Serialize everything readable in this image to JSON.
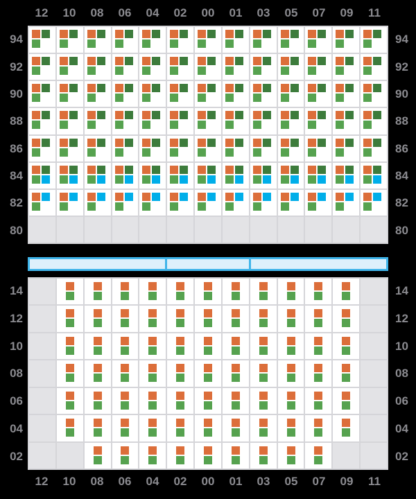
{
  "colors": {
    "background": "#000000",
    "label_text": "#8b8b90",
    "cell_bg": "#ffffff",
    "cell_empty_bg": "#e3e3e6",
    "grid_line": "#d5d5d9",
    "orange": "#dc6e3a",
    "dark_green": "#3d7c3c",
    "green": "#56a24f",
    "blue": "#00aee9",
    "selector_fill": "#ddf0fb",
    "selector_border": "#3fb4e9"
  },
  "chart_data": {
    "type": "heatmap",
    "title": "",
    "legend": "none",
    "x_labels": [
      "12",
      "10",
      "08",
      "06",
      "04",
      "02",
      "00",
      "01",
      "03",
      "05",
      "07",
      "09",
      "11"
    ],
    "x_axis_shown": "top and bottom",
    "y_axis_shown": "left and right",
    "cell_patterns": {
      "A": {
        "layout": "quad",
        "squares": [
          {
            "pos": "tl",
            "color": "orange"
          },
          {
            "pos": "tr",
            "color": "dark_green"
          },
          {
            "pos": "bl",
            "color": "green"
          }
        ]
      },
      "B": {
        "layout": "quad",
        "squares": [
          {
            "pos": "tl",
            "color": "orange"
          },
          {
            "pos": "tr",
            "color": "dark_green"
          },
          {
            "pos": "bl",
            "color": "green"
          },
          {
            "pos": "br",
            "color": "blue"
          }
        ]
      },
      "C": {
        "layout": "quad",
        "squares": [
          {
            "pos": "tl",
            "color": "orange"
          },
          {
            "pos": "tr",
            "color": "blue"
          },
          {
            "pos": "bl",
            "color": "green"
          }
        ]
      },
      "S": {
        "layout": "stack",
        "squares": [
          {
            "pos": "t",
            "color": "orange"
          },
          {
            "pos": "b",
            "color": "green"
          }
        ]
      },
      "E": {
        "layout": "empty",
        "squares": []
      }
    },
    "panels": [
      {
        "id": "top",
        "rows": [
          {
            "y": "94",
            "cells": [
              "A",
              "A",
              "A",
              "A",
              "A",
              "A",
              "A",
              "A",
              "A",
              "A",
              "A",
              "A",
              "A"
            ]
          },
          {
            "y": "92",
            "cells": [
              "A",
              "A",
              "A",
              "A",
              "A",
              "A",
              "A",
              "A",
              "A",
              "A",
              "A",
              "A",
              "A"
            ]
          },
          {
            "y": "90",
            "cells": [
              "A",
              "A",
              "A",
              "A",
              "A",
              "A",
              "A",
              "A",
              "A",
              "A",
              "A",
              "A",
              "A"
            ]
          },
          {
            "y": "88",
            "cells": [
              "A",
              "A",
              "A",
              "A",
              "A",
              "A",
              "A",
              "A",
              "A",
              "A",
              "A",
              "A",
              "A"
            ]
          },
          {
            "y": "86",
            "cells": [
              "A",
              "A",
              "A",
              "A",
              "A",
              "A",
              "A",
              "A",
              "A",
              "A",
              "A",
              "A",
              "A"
            ]
          },
          {
            "y": "84",
            "cells": [
              "B",
              "B",
              "B",
              "B",
              "B",
              "B",
              "B",
              "B",
              "B",
              "B",
              "B",
              "B",
              "B"
            ]
          },
          {
            "y": "82",
            "cells": [
              "C",
              "C",
              "C",
              "C",
              "C",
              "C",
              "C",
              "C",
              "C",
              "C",
              "C",
              "C",
              "C"
            ]
          },
          {
            "y": "80",
            "cells": [
              "E",
              "E",
              "E",
              "E",
              "E",
              "E",
              "E",
              "E",
              "E",
              "E",
              "E",
              "E",
              "E"
            ]
          }
        ]
      },
      {
        "id": "bottom",
        "rows": [
          {
            "y": "14",
            "cells": [
              "E",
              "S",
              "S",
              "S",
              "S",
              "S",
              "S",
              "S",
              "S",
              "S",
              "S",
              "S",
              "E"
            ]
          },
          {
            "y": "12",
            "cells": [
              "E",
              "S",
              "S",
              "S",
              "S",
              "S",
              "S",
              "S",
              "S",
              "S",
              "S",
              "S",
              "E"
            ]
          },
          {
            "y": "10",
            "cells": [
              "E",
              "S",
              "S",
              "S",
              "S",
              "S",
              "S",
              "S",
              "S",
              "S",
              "S",
              "S",
              "E"
            ]
          },
          {
            "y": "08",
            "cells": [
              "E",
              "S",
              "S",
              "S",
              "S",
              "S",
              "S",
              "S",
              "S",
              "S",
              "S",
              "S",
              "E"
            ]
          },
          {
            "y": "06",
            "cells": [
              "E",
              "S",
              "S",
              "S",
              "S",
              "S",
              "S",
              "S",
              "S",
              "S",
              "S",
              "S",
              "E"
            ]
          },
          {
            "y": "04",
            "cells": [
              "E",
              "S",
              "S",
              "S",
              "S",
              "S",
              "S",
              "S",
              "S",
              "S",
              "S",
              "S",
              "E"
            ]
          },
          {
            "y": "02",
            "cells": [
              "E",
              "E",
              "S",
              "S",
              "S",
              "S",
              "S",
              "S",
              "S",
              "S",
              "S",
              "E",
              "E"
            ]
          }
        ]
      }
    ],
    "selector": {
      "segment_col_spans": [
        5,
        3,
        5
      ]
    }
  }
}
